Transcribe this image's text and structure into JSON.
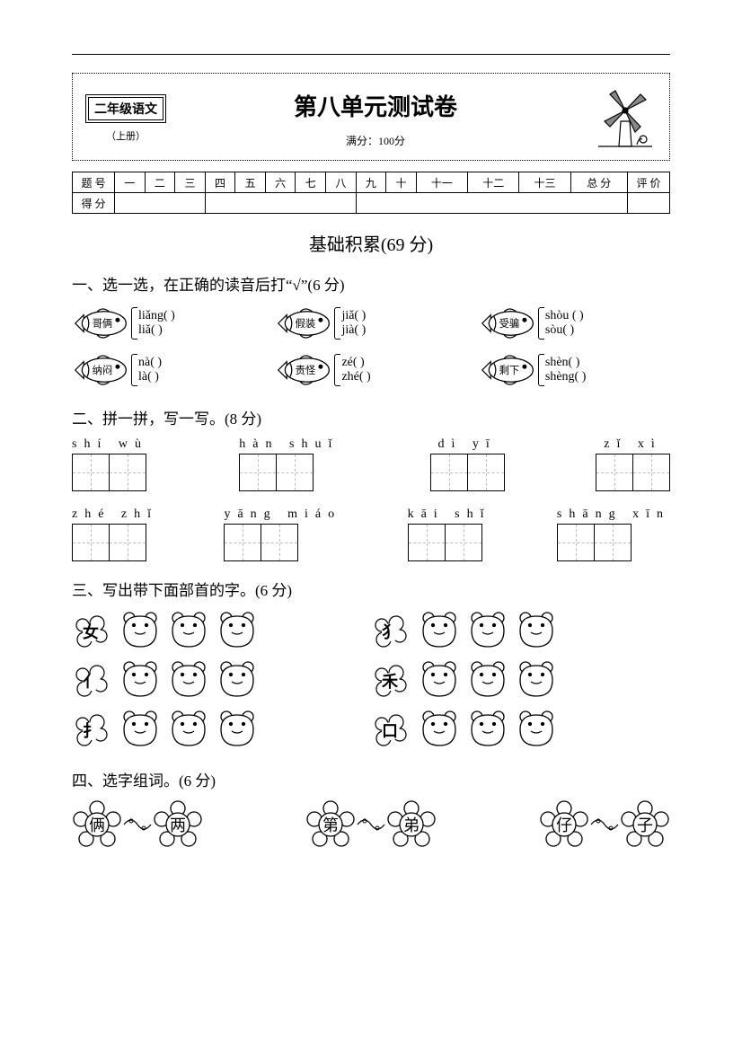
{
  "header": {
    "grade": "二年级语文",
    "volume": "（上册）",
    "title": "第八单元测试卷",
    "full_score_label": "满分：",
    "full_score_value": "100分"
  },
  "score_table": {
    "row1_label": "题 号",
    "cols": [
      "一",
      "二",
      "三",
      "四",
      "五",
      "六",
      "七",
      "八",
      "九",
      "十",
      "十一",
      "十二",
      "十三",
      "总 分",
      "评 价"
    ],
    "row2_label": "得 分"
  },
  "section1_title": "基础积累(69 分)",
  "q1": {
    "heading": "一、选一选，在正确的读音后打“√”(6 分)",
    "items": [
      {
        "word": "哥俩",
        "p1": "liǎng(        )",
        "p2": "liǎ(          )"
      },
      {
        "word": "假装",
        "p1": "jiǎ(        )",
        "p2": "jià(        )"
      },
      {
        "word": "受骗",
        "p1": "shòu (       )",
        "p2": "sòu(         )"
      },
      {
        "word": "纳闷",
        "p1": "nà(         )",
        "p2": "là(          )"
      },
      {
        "word": "责怪",
        "p1": "zé(         )",
        "p2": "zhé(        )"
      },
      {
        "word": "剩下",
        "p1": "shèn(       )",
        "p2": "shèng(      )"
      }
    ]
  },
  "q2": {
    "heading": "二、拼一拼，写一写。(8 分)",
    "row1": [
      {
        "pinyin": "shí   wù"
      },
      {
        "pinyin": "hàn   shuǐ"
      },
      {
        "pinyin": "dì    yī"
      },
      {
        "pinyin": "zǐ    xì"
      }
    ],
    "row2": [
      {
        "pinyin": "zhé   zhǐ"
      },
      {
        "pinyin": "yāng  miáo"
      },
      {
        "pinyin": "kāi   shǐ"
      },
      {
        "pinyin": "shāng xīn"
      }
    ]
  },
  "q3": {
    "heading": "三、写出带下面部首的字。(6 分)",
    "radicals_left": [
      "女",
      "亻",
      "扌"
    ],
    "radicals_right": [
      "犭",
      "禾",
      "口"
    ]
  },
  "q4": {
    "heading": "四、选字组词。(6 分)",
    "pairs": [
      [
        "俩",
        "两"
      ],
      [
        "第",
        "弟"
      ],
      [
        "仔",
        "子"
      ]
    ]
  },
  "colors": {
    "line": "#000000",
    "bg": "#ffffff",
    "dash": "#bbbbbb"
  }
}
